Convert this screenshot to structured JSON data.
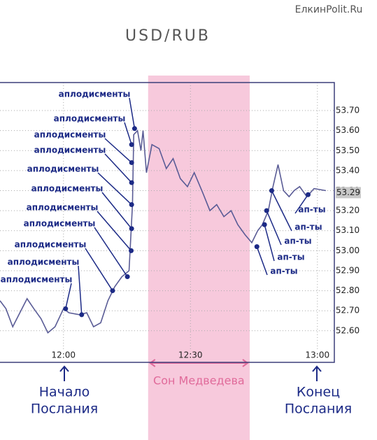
{
  "chart_data": {
    "type": "line",
    "title": "USD/RUB",
    "watermark": "ЕлкинPolit.Ru",
    "x": [
      705,
      706.4,
      708,
      709.7,
      711.4,
      713,
      714.7,
      716.3,
      718,
      720,
      721.3,
      723.8,
      725.5,
      727.1,
      728.8,
      730.5,
      732.1,
      733.8,
      735.5,
      736.3,
      736.6,
      737.5,
      738.3,
      738.8,
      739.6,
      740.9,
      742.6,
      744.3,
      745.9,
      747.6,
      749.3,
      750.9,
      752.9,
      754.6,
      756.2,
      757.9,
      759.6,
      761.2,
      762.9,
      764.5,
      765.9,
      767,
      768.4,
      769.5,
      770.7,
      772,
      773.3,
      774.5,
      775.8,
      777.5,
      779.2,
      782
    ],
    "series": [
      {
        "color": "#5a5c96",
        "values": [
          52.75,
          52.71,
          52.62,
          52.69,
          52.76,
          52.71,
          52.66,
          52.59,
          52.62,
          52.71,
          52.69,
          52.68,
          52.69,
          52.62,
          52.64,
          52.75,
          52.82,
          52.87,
          52.9,
          53.23,
          53.58,
          53.6,
          53.5,
          53.6,
          53.39,
          53.53,
          53.51,
          53.41,
          53.46,
          53.36,
          53.32,
          53.39,
          53.29,
          53.2,
          53.23,
          53.17,
          53.2,
          53.13,
          53.08,
          53.04,
          53.1,
          53.13,
          53.2,
          53.32,
          53.43,
          53.3,
          53.27,
          53.3,
          53.32,
          53.27,
          53.31,
          53.3
        ]
      }
    ],
    "xlim": [
      705,
      784
    ],
    "ylim": [
      52.47,
      53.84
    ],
    "xticks": [
      {
        "value": 720,
        "label": "12:00"
      },
      {
        "value": 750,
        "label": "12:30"
      },
      {
        "value": 780,
        "label": "13:00"
      }
    ],
    "yticks": [
      {
        "value": 52.6,
        "label": "52.60"
      },
      {
        "value": 52.7,
        "label": "52.70"
      },
      {
        "value": 52.8,
        "label": "52.80"
      },
      {
        "value": 52.9,
        "label": "52.90"
      },
      {
        "value": 53.0,
        "label": "53.00"
      },
      {
        "value": 53.1,
        "label": "53.10"
      },
      {
        "value": 53.2,
        "label": "53.20"
      },
      {
        "value": 53.3,
        "label": "53.30"
      },
      {
        "value": 53.4,
        "label": "53.40"
      },
      {
        "value": 53.5,
        "label": "53.50"
      },
      {
        "value": 53.6,
        "label": "53.60"
      },
      {
        "value": 53.7,
        "label": "53.70"
      }
    ],
    "grid": true,
    "last_price": {
      "value": 53.29,
      "label": "53.29"
    },
    "shaded_range": {
      "x": [
        740,
        764
      ],
      "label": "Сон Медведева"
    },
    "start_label": [
      "Начало",
      "Послания"
    ],
    "end_label": [
      "Конец",
      "Послания"
    ],
    "applause": [
      {
        "text": "аплодисменты",
        "x": 736.8,
        "y": 53.61
      },
      {
        "text": "аплодисменты",
        "x": 736.1,
        "y": 53.53
      },
      {
        "text": "аплодисменты",
        "x": 736.1,
        "y": 53.44
      },
      {
        "text": "аплодисменты",
        "x": 736.1,
        "y": 53.34
      },
      {
        "text": "аплодисменты",
        "x": 736.1,
        "y": 53.23
      },
      {
        "text": "аплодисменты",
        "x": 736.1,
        "y": 53.11
      },
      {
        "text": "аплодисменты",
        "x": 736,
        "y": 53.0
      },
      {
        "text": "аплодисменты",
        "x": 735.1,
        "y": 52.87
      },
      {
        "text": "аплодисменты",
        "x": 731.6,
        "y": 52.8
      },
      {
        "text": "аплодисменты",
        "x": 724.3,
        "y": 52.68
      },
      {
        "text": "аплодисменты",
        "x": 720.5,
        "y": 52.71
      },
      {
        "text": "ап-ты",
        "x": 777.8,
        "y": 53.28
      },
      {
        "text": "ап-ты",
        "x": 769.2,
        "y": 53.3
      },
      {
        "text": "ап-ты",
        "x": 768,
        "y": 53.2
      },
      {
        "text": "ап-ты",
        "x": 767.5,
        "y": 53.13
      },
      {
        "text": "ап-ты",
        "x": 765.7,
        "y": 53.02
      }
    ]
  }
}
